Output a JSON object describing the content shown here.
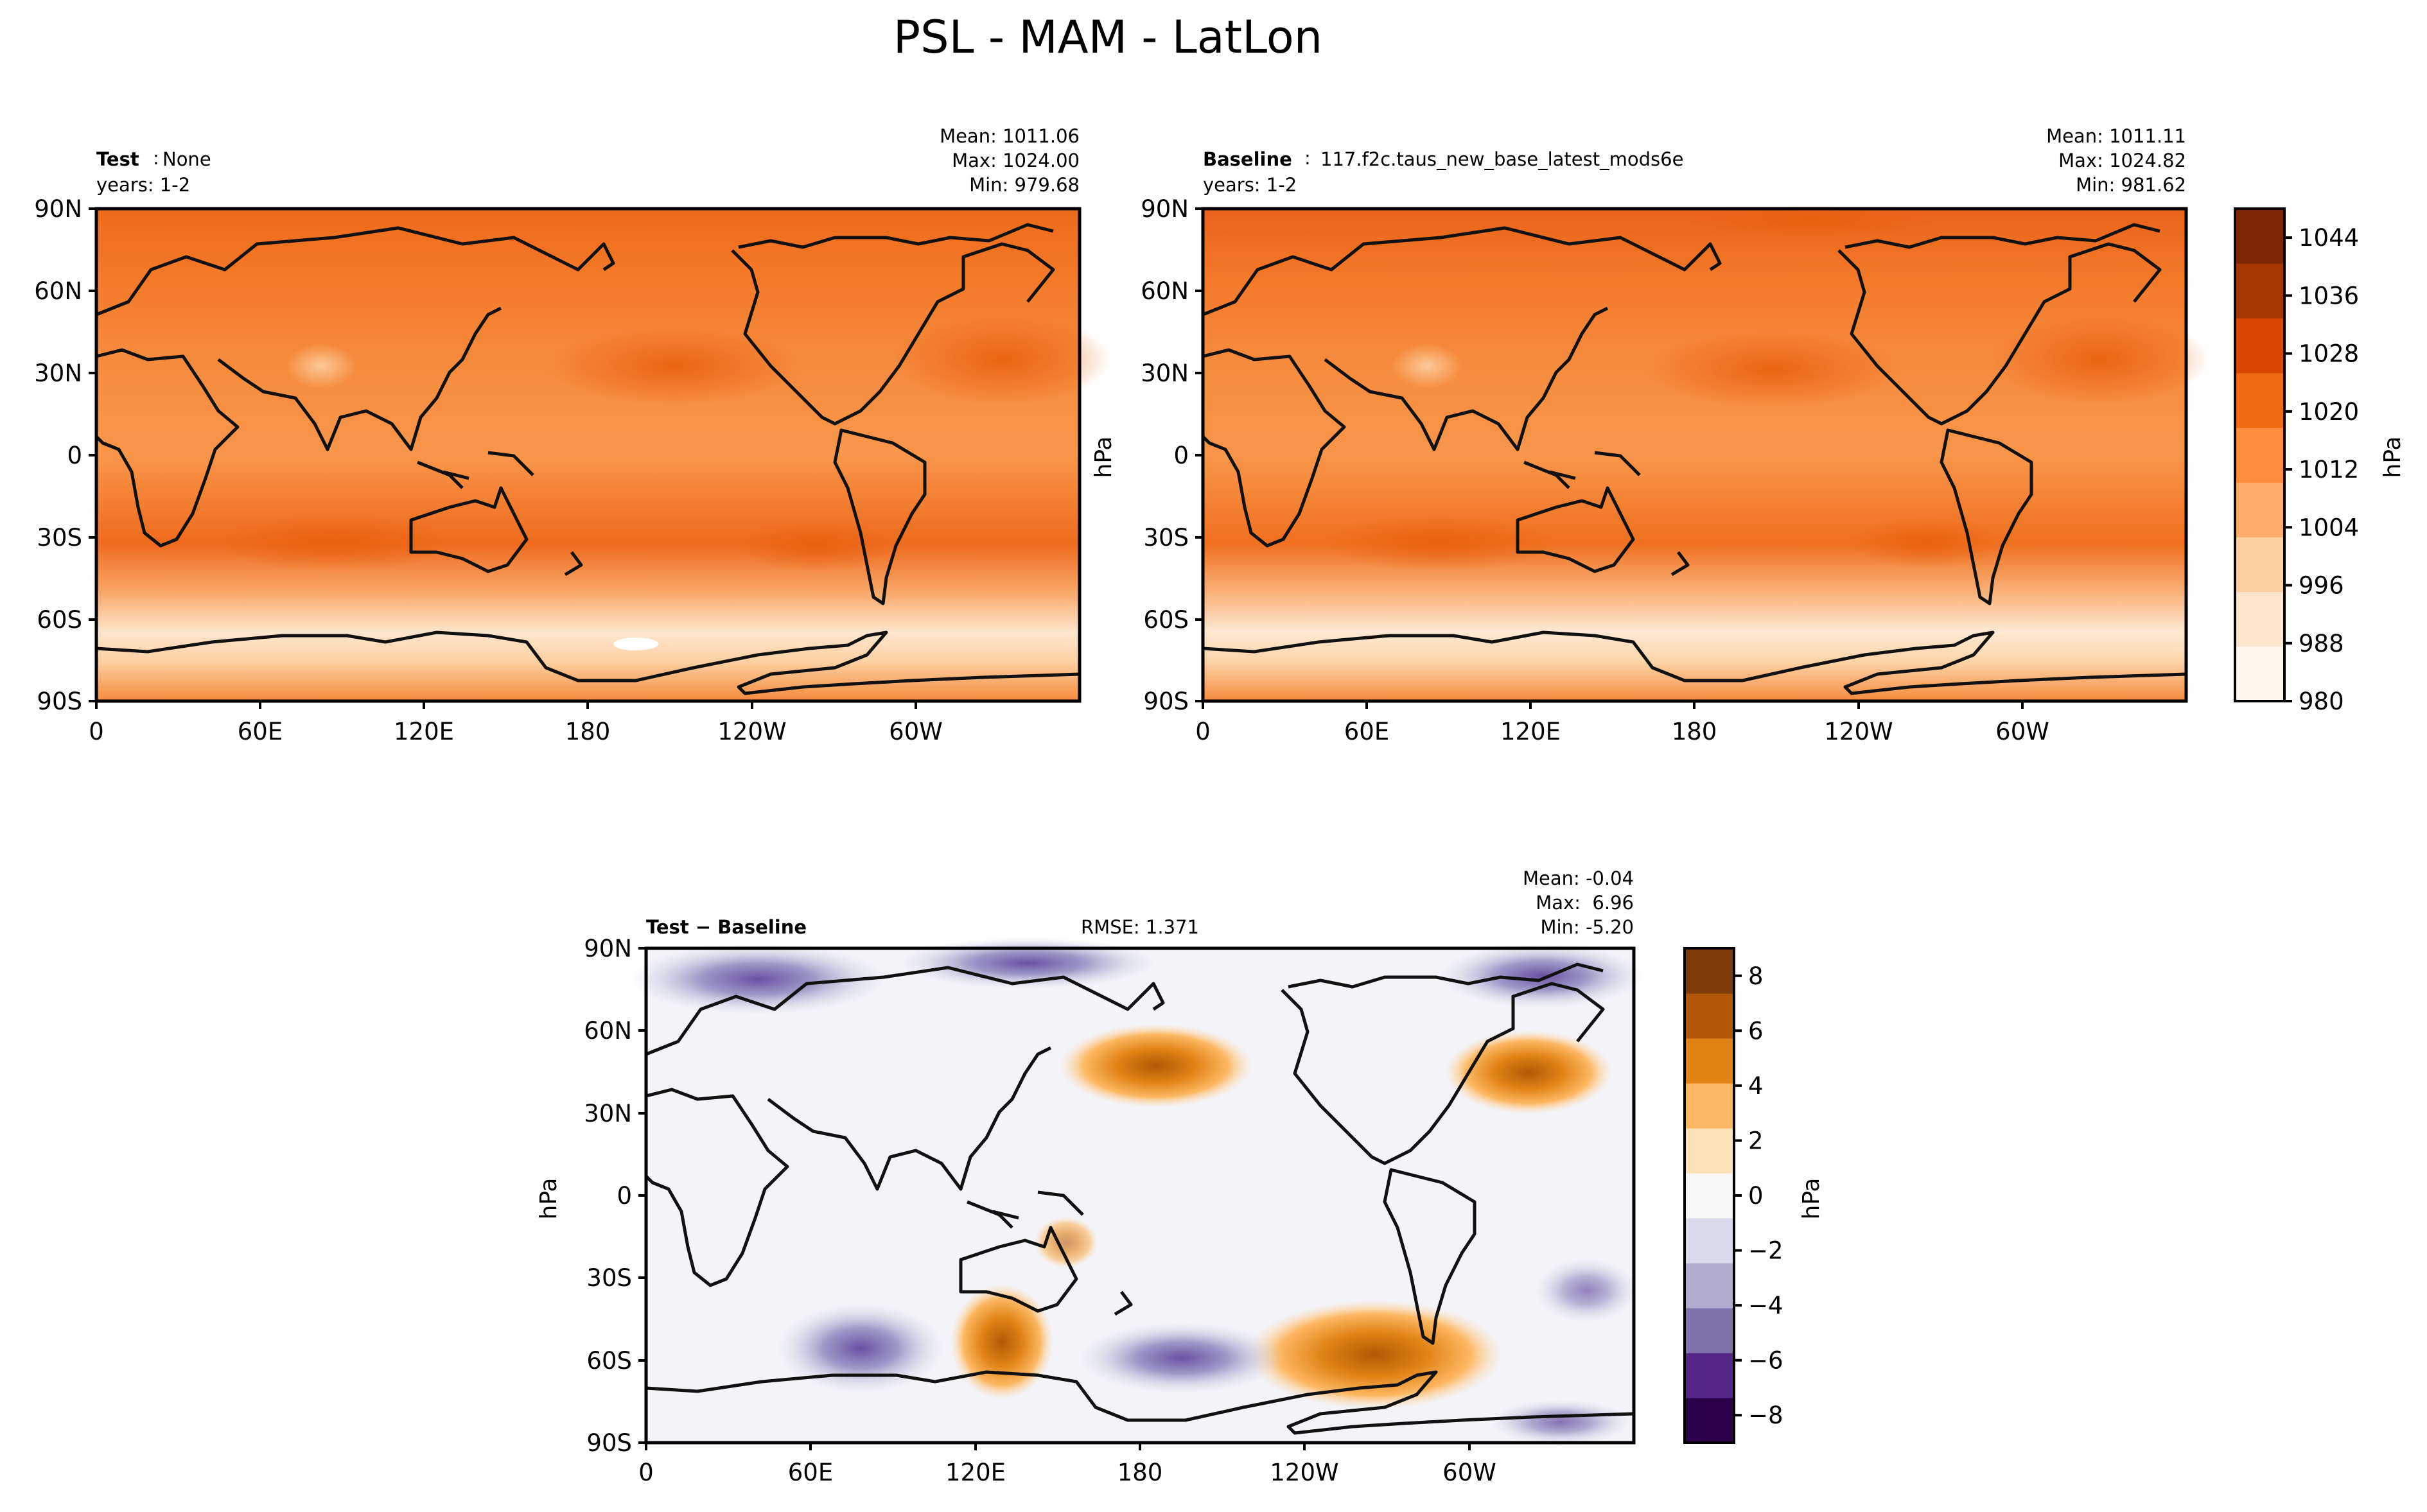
{
  "figure": {
    "title": "PSL - MAM - LatLon"
  },
  "chart_data": [
    {
      "type": "heatmap",
      "panel": "test",
      "label_bold": "Test",
      "label_text": "None",
      "years": "years: 1-2",
      "stats": {
        "mean": "Mean: 1011.06",
        "max": "Max: 1024.00",
        "min": "Min: 979.68"
      },
      "x_ticks": [
        "0",
        "60E",
        "120E",
        "180",
        "120W",
        "60W"
      ],
      "y_ticks": [
        "90N",
        "60N",
        "30N",
        "0",
        "30S",
        "60S",
        "90S"
      ],
      "xlim": [
        0,
        360
      ],
      "ylim": [
        -90,
        90
      ],
      "units": "hPa",
      "summary": {
        "mean": 1011.06,
        "max": 1024.0,
        "min": 979.68
      }
    },
    {
      "type": "heatmap",
      "panel": "baseline",
      "label_bold": "Baseline",
      "label_text": "117.f2c.taus_new_base_latest_mods6e",
      "years": "years: 1-2",
      "stats": {
        "mean": "Mean: 1011.11",
        "max": "Max: 1024.82",
        "min": "Min: 981.62"
      },
      "x_ticks": [
        "0",
        "60E",
        "120E",
        "180",
        "120W",
        "60W"
      ],
      "y_ticks": [
        "90N",
        "60N",
        "30N",
        "0",
        "30S",
        "60S",
        "90S"
      ],
      "xlim": [
        0,
        360
      ],
      "ylim": [
        -90,
        90
      ],
      "ylabel": "hPa",
      "units": "hPa",
      "summary": {
        "mean": 1011.11,
        "max": 1024.82,
        "min": 981.62
      }
    },
    {
      "type": "heatmap",
      "panel": "difference",
      "label_bold": "Test − Baseline",
      "rmse": "RMSE: 1.371",
      "stats": {
        "mean": "Mean: -0.04",
        "max": "Max:  6.96",
        "min": "Min: -5.20"
      },
      "x_ticks": [
        "0",
        "60E",
        "120E",
        "180",
        "120W",
        "60W"
      ],
      "y_ticks": [
        "90N",
        "60N",
        "30N",
        "0",
        "30S",
        "60S",
        "90S"
      ],
      "xlim": [
        0,
        360
      ],
      "ylim": [
        -90,
        90
      ],
      "ylabel": "hPa",
      "units": "hPa",
      "summary": {
        "mean": -0.04,
        "max": 6.96,
        "min": -5.2,
        "rmse": 1.371
      }
    }
  ],
  "colorbars": {
    "main": {
      "label": "hPa",
      "range": [
        980,
        1048
      ],
      "tick_values": [
        980,
        988,
        996,
        1004,
        1012,
        1020,
        1028,
        1036,
        1044
      ],
      "ticks": [
        "980",
        "988",
        "996",
        "1004",
        "1012",
        "1020",
        "1028",
        "1036",
        "1044"
      ],
      "colors": [
        "#fff5eb",
        "#fee6ce",
        "#fdd0a2",
        "#fdae6b",
        "#fd8d3c",
        "#f16913",
        "#d94801",
        "#a63603",
        "#7f2704"
      ]
    },
    "diff": {
      "label": "hPa",
      "range": [
        -9,
        9
      ],
      "tick_values": [
        -8,
        -6,
        -4,
        -2,
        0,
        2,
        4,
        6,
        8
      ],
      "ticks": [
        "−8",
        "−6",
        "−4",
        "−2",
        "0",
        "2",
        "4",
        "6",
        "8"
      ],
      "colors": [
        "#2d004b",
        "#542788",
        "#8073ac",
        "#b2abd2",
        "#d8daeb",
        "#f7f7f7",
        "#fee0b6",
        "#fdb863",
        "#e08214",
        "#b35806",
        "#7f3b08"
      ]
    }
  }
}
